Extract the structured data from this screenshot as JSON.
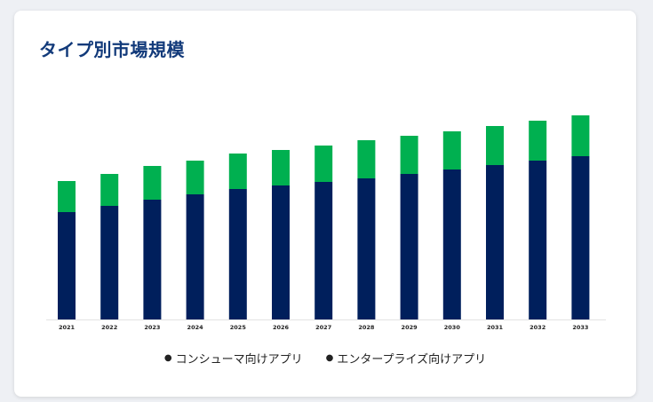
{
  "title": "タイプ別市場規模",
  "colors": {
    "consumer": "#001f5c",
    "enterprise": "#00b050"
  },
  "chart_data": {
    "type": "bar",
    "stacked": true,
    "title": "タイプ別市場規模",
    "xlabel": "",
    "ylabel": "",
    "categories": [
      "2021",
      "2022",
      "2023",
      "2024",
      "2025",
      "2026",
      "2027",
      "2028",
      "2029",
      "2030",
      "2031",
      "2032",
      "2033"
    ],
    "series": [
      {
        "name": "コンシューマ向けアプリ",
        "values": [
          121,
          128,
          135,
          141,
          147,
          151,
          155,
          159,
          164,
          169,
          174,
          179,
          184
        ]
      },
      {
        "name": "エンタープライズ向けアプリ",
        "values": [
          35,
          36,
          38,
          38,
          40,
          40,
          41,
          43,
          43,
          43,
          44,
          45,
          46
        ]
      }
    ],
    "ylim": [
      0,
      240
    ],
    "grid": false,
    "legend_position": "bottom"
  }
}
